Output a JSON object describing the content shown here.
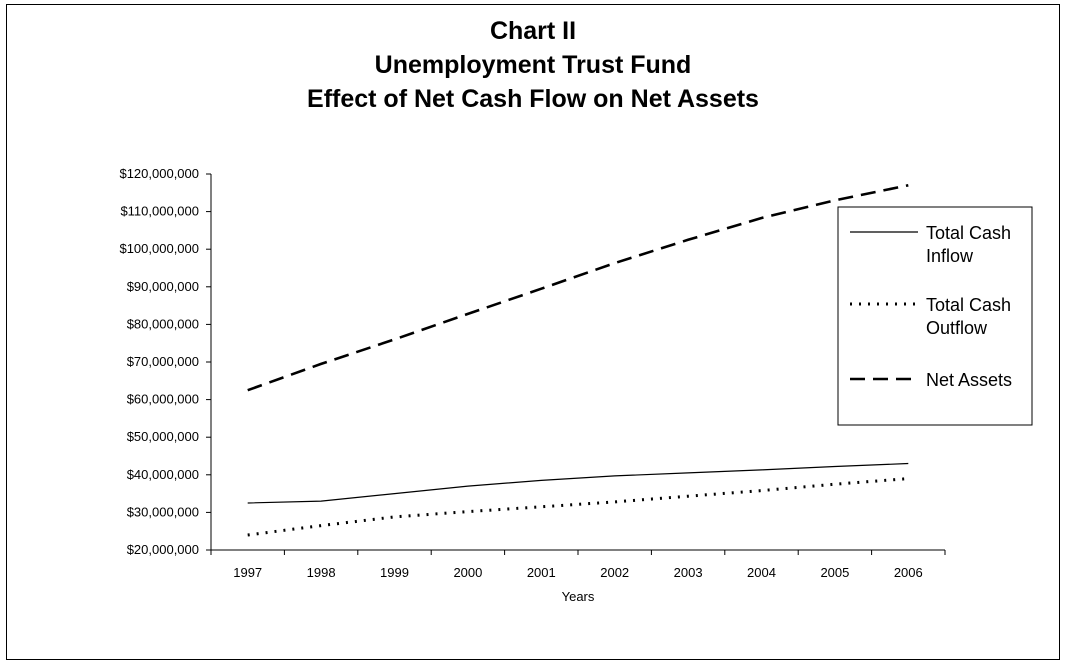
{
  "chart_data": {
    "type": "line",
    "title_lines": [
      "Chart II",
      "Unemployment Trust Fund",
      "Effect of Net Cash Flow on Net Assets"
    ],
    "xlabel": "Years",
    "ylabel": "",
    "categories": [
      "1997",
      "1998",
      "1999",
      "2000",
      "2001",
      "2002",
      "2003",
      "2004",
      "2005",
      "2006"
    ],
    "ylim": [
      20000000,
      120000000
    ],
    "yticks": [
      20000000,
      30000000,
      40000000,
      50000000,
      60000000,
      70000000,
      80000000,
      90000000,
      100000000,
      110000000,
      120000000
    ],
    "ytick_labels": [
      "$20,000,000",
      "$30,000,000",
      "$40,000,000",
      "$50,000,000",
      "$60,000,000",
      "$70,000,000",
      "$80,000,000",
      "$90,000,000",
      "$100,000,000",
      "$110,000,000",
      "$120,000,000"
    ],
    "grid": false,
    "legend_position": "right",
    "series": [
      {
        "name": "Total Cash Inflow",
        "legend_lines": [
          "Total Cash",
          "Inflow"
        ],
        "style": "solid",
        "values": [
          32500000,
          33000000,
          35000000,
          37000000,
          38500000,
          39700000,
          40500000,
          41300000,
          42200000,
          43000000
        ]
      },
      {
        "name": "Total Cash Outflow",
        "legend_lines": [
          "Total Cash",
          "Outflow"
        ],
        "style": "dotted",
        "values": [
          24000000,
          26500000,
          28800000,
          30200000,
          31500000,
          32800000,
          34300000,
          35800000,
          37500000,
          39000000
        ]
      },
      {
        "name": "Net Assets",
        "legend_lines": [
          "Net Assets"
        ],
        "style": "dashed",
        "values": [
          62500000,
          69500000,
          76000000,
          82800000,
          89500000,
          96300000,
          102500000,
          108300000,
          113000000,
          117000000
        ]
      }
    ]
  }
}
